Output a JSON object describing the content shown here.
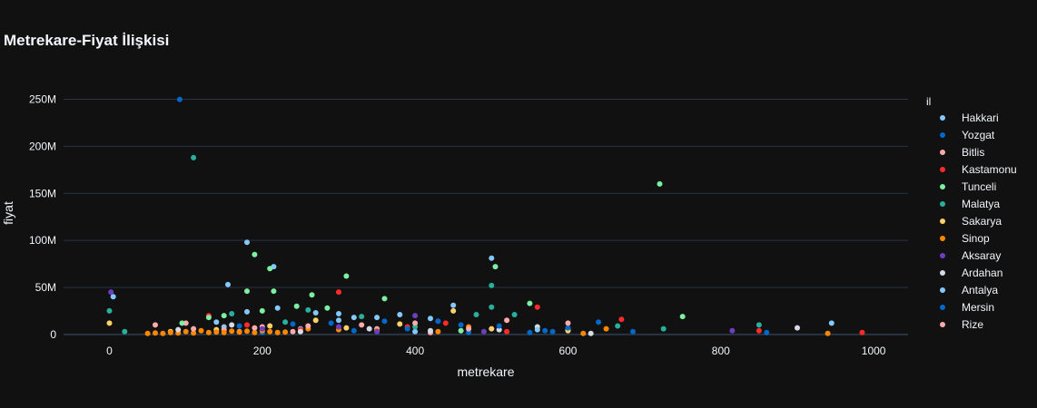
{
  "chart_data": {
    "type": "scatter",
    "title": "Metrekare-Fiyat İlişkisi",
    "xlabel": "metrekare",
    "ylabel": "fiyat",
    "xlim": [
      -60,
      1045
    ],
    "ylim": [
      -5000000,
      265000000
    ],
    "x_ticks": [
      0,
      200,
      400,
      600,
      800,
      1000
    ],
    "x_tick_labels": [
      "0",
      "200",
      "400",
      "600",
      "800",
      "1000"
    ],
    "y_ticks": [
      0,
      50000000,
      100000000,
      150000000,
      200000000,
      250000000
    ],
    "y_tick_labels": [
      "0",
      "50M",
      "100M",
      "150M",
      "200M",
      "250M"
    ],
    "grid": true,
    "legend_title": "il",
    "legend_position": "right",
    "series": [
      {
        "name": "Hakkari",
        "color": "#83c9ff",
        "points": [
          [
            5,
            40000000
          ],
          [
            180,
            98000000
          ],
          [
            215,
            72000000
          ],
          [
            155,
            53000000
          ],
          [
            500,
            81000000
          ],
          [
            945,
            12000000
          ],
          [
            300,
            15000000
          ],
          [
            150,
            8000000
          ],
          [
            250,
            6000000
          ],
          [
            400,
            3000000
          ]
        ]
      },
      {
        "name": "Yozgat",
        "color": "#0068c9",
        "points": [
          [
            92,
            250000000
          ],
          [
            685,
            3000000
          ],
          [
            860,
            2000000
          ],
          [
            470,
            2000000
          ],
          [
            580,
            3000000
          ],
          [
            200,
            2000000
          ],
          [
            320,
            4000000
          ],
          [
            640,
            13000000
          ],
          [
            550,
            2000000
          ]
        ]
      },
      {
        "name": "Bitlis",
        "color": "#ffabab",
        "points": [
          [
            150,
            5000000
          ],
          [
            200,
            8000000
          ],
          [
            240,
            3000000
          ],
          [
            350,
            6000000
          ],
          [
            420,
            2000000
          ],
          [
            100,
            12000000
          ],
          [
            170,
            3000000
          ]
        ]
      },
      {
        "name": "Kastamonu",
        "color": "#ff2b2b",
        "points": [
          [
            300,
            45000000
          ],
          [
            390,
            8000000
          ],
          [
            520,
            3000000
          ],
          [
            560,
            29000000
          ],
          [
            670,
            16000000
          ],
          [
            850,
            4000000
          ],
          [
            985,
            2000000
          ],
          [
            250,
            5000000
          ],
          [
            180,
            10000000
          ],
          [
            130,
            20000000
          ],
          [
            440,
            12000000
          ]
        ]
      },
      {
        "name": "Tunceli",
        "color": "#7defa1",
        "points": [
          [
            720,
            160000000
          ],
          [
            190,
            85000000
          ],
          [
            210,
            70000000
          ],
          [
            505,
            72000000
          ],
          [
            310,
            62000000
          ],
          [
            180,
            46000000
          ],
          [
            215,
            46000000
          ],
          [
            245,
            30000000
          ],
          [
            265,
            42000000
          ],
          [
            360,
            38000000
          ],
          [
            550,
            33000000
          ],
          [
            750,
            19000000
          ],
          [
            200,
            25000000
          ],
          [
            130,
            18000000
          ],
          [
            95,
            12000000
          ],
          [
            150,
            20000000
          ],
          [
            285,
            28000000
          ],
          [
            600,
            5000000
          ],
          [
            460,
            4000000
          ]
        ]
      },
      {
        "name": "Malatya",
        "color": "#29b09d",
        "points": [
          [
            110,
            188000000
          ],
          [
            500,
            52000000
          ],
          [
            0,
            25000000
          ],
          [
            500,
            29000000
          ],
          [
            480,
            21000000
          ],
          [
            530,
            21000000
          ],
          [
            665,
            9000000
          ],
          [
            725,
            6000000
          ],
          [
            850,
            10000000
          ],
          [
            330,
            19000000
          ],
          [
            230,
            13000000
          ],
          [
            160,
            22000000
          ],
          [
            20,
            3000000
          ],
          [
            260,
            26000000
          ],
          [
            400,
            8000000
          ]
        ]
      },
      {
        "name": "Sakarya",
        "color": "#ffd16a",
        "points": [
          [
            0,
            12000000
          ],
          [
            450,
            25000000
          ],
          [
            600,
            4000000
          ],
          [
            80,
            3000000
          ],
          [
            140,
            5000000
          ],
          [
            210,
            9000000
          ],
          [
            310,
            7000000
          ],
          [
            380,
            11000000
          ],
          [
            500,
            6000000
          ],
          [
            270,
            15000000
          ]
        ]
      },
      {
        "name": "Sinop",
        "color": "#ff8700",
        "points": [
          [
            50,
            1000000
          ],
          [
            70,
            1000000
          ],
          [
            90,
            1500000
          ],
          [
            110,
            1500000
          ],
          [
            130,
            2000000
          ],
          [
            150,
            2000000
          ],
          [
            170,
            2500000
          ],
          [
            190,
            2000000
          ],
          [
            210,
            3000000
          ],
          [
            230,
            2500000
          ],
          [
            250,
            3000000
          ],
          [
            120,
            4000000
          ],
          [
            160,
            3500000
          ],
          [
            200,
            4000000
          ],
          [
            260,
            6000000
          ],
          [
            300,
            5000000
          ],
          [
            350,
            4000000
          ],
          [
            430,
            3000000
          ],
          [
            470,
            8000000
          ],
          [
            620,
            1000000
          ],
          [
            650,
            6000000
          ],
          [
            940,
            1000000
          ],
          [
            100,
            3000000
          ],
          [
            140,
            2500000
          ],
          [
            180,
            3500000
          ],
          [
            220,
            2000000
          ],
          [
            60,
            1500000
          ],
          [
            80,
            2000000
          ]
        ]
      },
      {
        "name": "Aksaray",
        "color": "#6d3fc0",
        "points": [
          [
            2,
            45000000
          ],
          [
            400,
            20000000
          ],
          [
            430,
            14000000
          ],
          [
            490,
            3000000
          ],
          [
            815,
            4000000
          ],
          [
            300,
            8000000
          ],
          [
            200,
            6000000
          ],
          [
            350,
            3000000
          ]
        ]
      },
      {
        "name": "Ardahan",
        "color": "#d5dae5",
        "points": [
          [
            900,
            7000000
          ],
          [
            630,
            1000000
          ],
          [
            510,
            5000000
          ],
          [
            420,
            4000000
          ],
          [
            340,
            6000000
          ],
          [
            250,
            3000000
          ],
          [
            160,
            10000000
          ],
          [
            90,
            5000000
          ],
          [
            560,
            8000000
          ]
        ]
      },
      {
        "name": "Antalya",
        "color": "#83c9ff",
        "points": [
          [
            300,
            22000000
          ],
          [
            350,
            18000000
          ],
          [
            450,
            31000000
          ],
          [
            380,
            21000000
          ],
          [
            220,
            28000000
          ],
          [
            270,
            23000000
          ],
          [
            320,
            18000000
          ],
          [
            420,
            17000000
          ],
          [
            180,
            24000000
          ],
          [
            140,
            13000000
          ],
          [
            560,
            5000000
          ]
        ]
      },
      {
        "name": "Mersin",
        "color": "#0068c9",
        "points": [
          [
            430,
            14000000
          ],
          [
            600,
            7000000
          ],
          [
            460,
            10000000
          ],
          [
            360,
            14000000
          ],
          [
            290,
            12000000
          ],
          [
            510,
            9000000
          ],
          [
            390,
            6000000
          ],
          [
            240,
            11000000
          ],
          [
            170,
            9000000
          ],
          [
            570,
            4000000
          ]
        ]
      },
      {
        "name": "Rize",
        "color": "#ffabab",
        "points": [
          [
            520,
            15000000
          ],
          [
            470,
            6000000
          ],
          [
            400,
            12000000
          ],
          [
            330,
            10000000
          ],
          [
            260,
            9000000
          ],
          [
            190,
            7000000
          ],
          [
            110,
            6000000
          ],
          [
            60,
            10000000
          ],
          [
            600,
            12000000
          ]
        ]
      }
    ]
  }
}
